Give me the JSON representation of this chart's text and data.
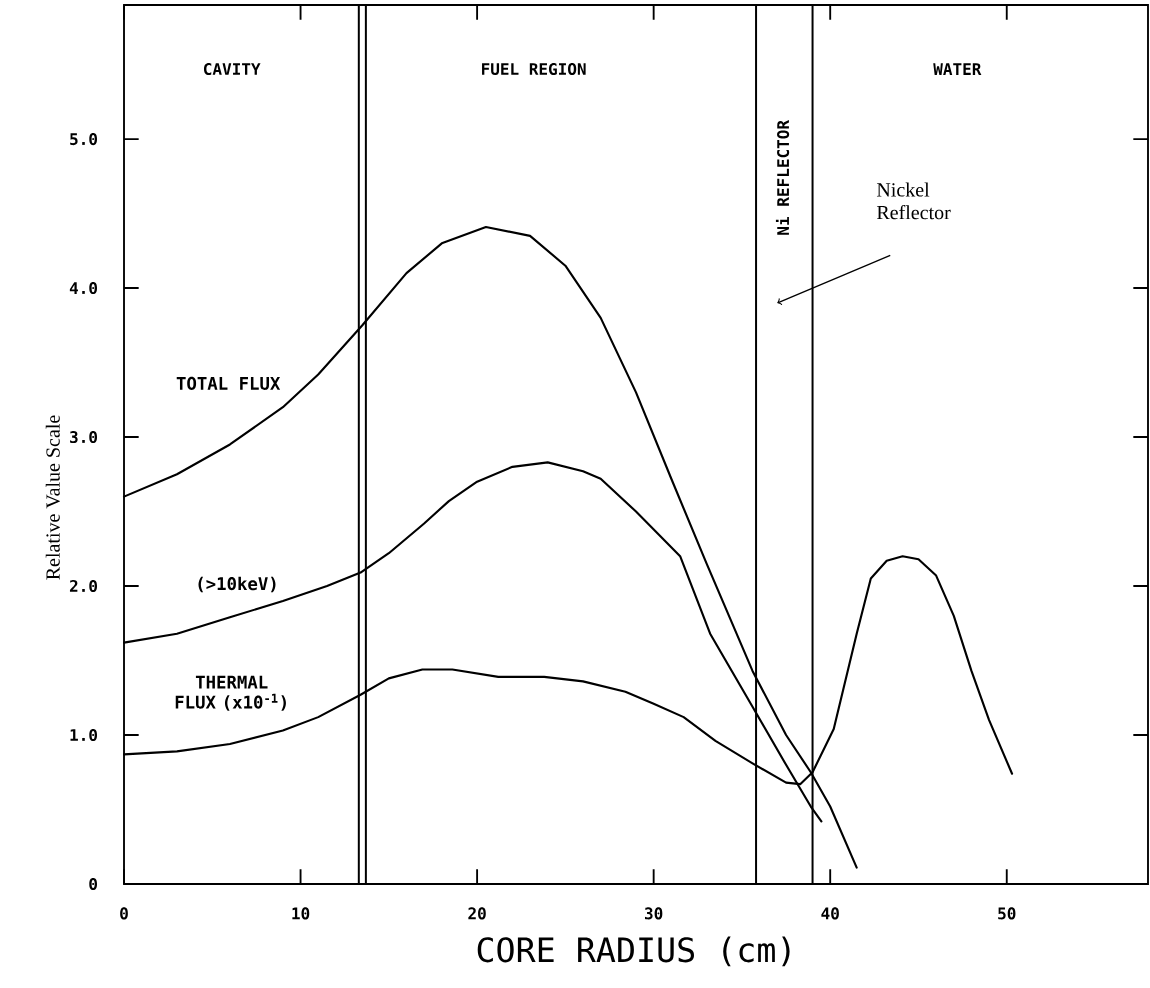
{
  "chart_data": {
    "type": "line",
    "xlabel": "CORE RADIUS (cm)",
    "ylabel": "Relative Value Scale",
    "xlim": [
      0,
      58
    ],
    "ylim": [
      0,
      5.9
    ],
    "xticks": [
      0,
      10,
      20,
      30,
      40,
      50
    ],
    "yticks": [
      0,
      {
        "value": 1,
        "label": "1.0"
      },
      {
        "value": 2,
        "label": "2.0"
      },
      {
        "value": 3,
        "label": "3.0"
      },
      {
        "value": 4,
        "label": "4.0"
      },
      {
        "value": 5,
        "label": "5.0"
      }
    ],
    "grid": false,
    "marker": "none",
    "line_style": "solid",
    "series": [
      {
        "name": "TOTAL FLUX",
        "color": "#000000",
        "x": [
          0,
          3,
          6,
          9,
          11,
          13.5,
          16,
          18,
          20.5,
          23,
          25,
          27,
          29,
          31,
          33,
          35.6,
          37.5,
          38.9,
          40,
          41.5
        ],
        "values": [
          2.6,
          2.75,
          2.95,
          3.2,
          3.42,
          3.75,
          4.1,
          4.3,
          4.41,
          4.35,
          4.15,
          3.8,
          3.3,
          2.72,
          2.15,
          1.43,
          1.0,
          0.75,
          0.52,
          0.11
        ]
      },
      {
        "name": "(>10keV)",
        "color": "#000000",
        "x": [
          0,
          3,
          6,
          9,
          11.5,
          13.4,
          15,
          17,
          18.4,
          20,
          22,
          24,
          26,
          27,
          29,
          31.5,
          33.2,
          35.6,
          37.5,
          38.9,
          39.5
        ],
        "values": [
          1.62,
          1.68,
          1.79,
          1.9,
          2.0,
          2.09,
          2.22,
          2.42,
          2.57,
          2.7,
          2.8,
          2.83,
          2.77,
          2.72,
          2.5,
          2.2,
          1.68,
          1.19,
          0.8,
          0.52,
          0.42
        ]
      },
      {
        "name": "THERMAL FLUX (x10$^{-1}$)",
        "color": "#000000",
        "x": [
          0,
          3,
          6,
          9,
          11,
          13.4,
          15,
          16.9,
          18.6,
          21.2,
          23.8,
          26,
          28.4,
          30,
          31.7,
          33.5,
          35.6,
          37.5,
          38.3,
          39.0,
          40.2,
          41.5,
          42.3,
          43.2,
          44.1,
          45,
          46.0,
          47,
          48.0,
          49,
          50.3
        ],
        "values": [
          0.87,
          0.89,
          0.94,
          1.03,
          1.12,
          1.27,
          1.38,
          1.44,
          1.44,
          1.39,
          1.39,
          1.36,
          1.29,
          1.21,
          1.12,
          0.96,
          0.81,
          0.68,
          0.67,
          0.75,
          1.04,
          1.68,
          2.05,
          2.17,
          2.2,
          2.18,
          2.07,
          1.8,
          1.43,
          1.1,
          0.74
        ]
      }
    ],
    "ref_lines": [
      {
        "axis": "x",
        "value": 13.3
      },
      {
        "axis": "x",
        "value": 13.7
      },
      {
        "axis": "x",
        "value": 35.8
      },
      {
        "axis": "x",
        "value": 39.0
      }
    ],
    "annotations": [
      "CAVITY",
      "FUEL REGION",
      "Ni REFLECTOR",
      "WATER",
      "Nickel Reflector"
    ]
  }
}
